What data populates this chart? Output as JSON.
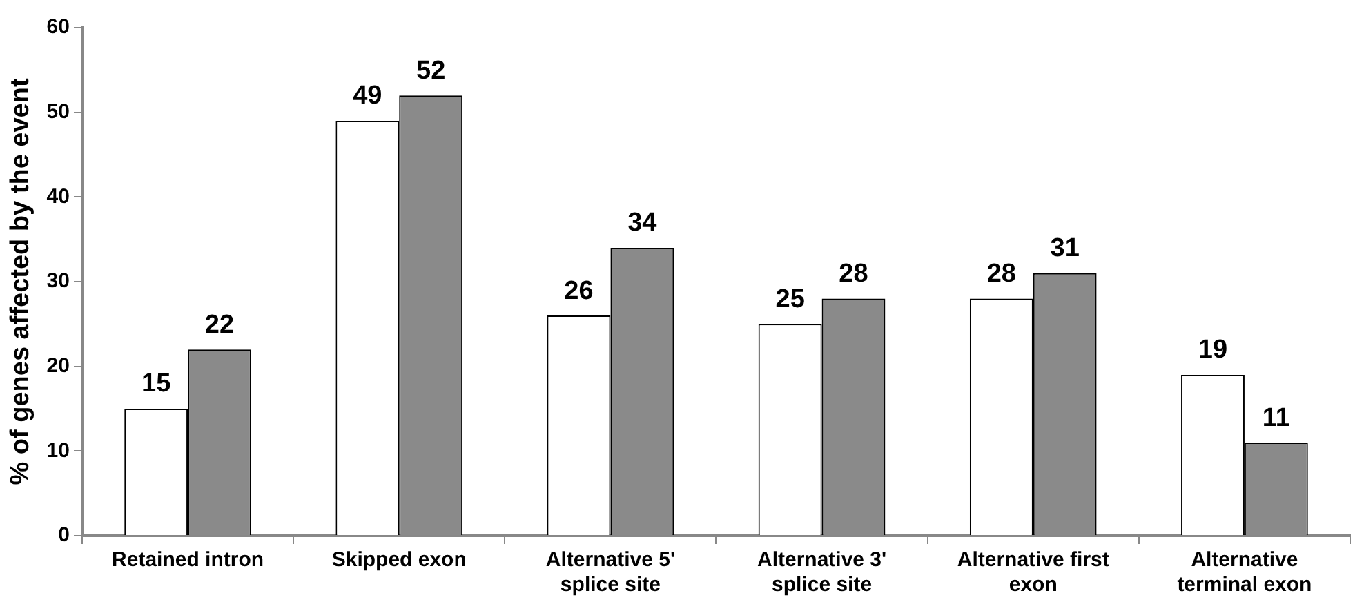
{
  "chart_data": {
    "type": "bar",
    "ylabel": "% of genes affected by the event",
    "categories": [
      "Retained intron",
      "Skipped exon",
      "Alternative 5' splice site",
      "Alternative 3' splice site",
      "Alternative first exon",
      "Alternative terminal exon"
    ],
    "series": [
      {
        "color": "#ffffff",
        "values": [
          15,
          49,
          26,
          25,
          28,
          19
        ]
      },
      {
        "color": "#8a8a8a",
        "values": [
          22,
          52,
          34,
          28,
          31,
          11
        ]
      }
    ],
    "ylim": [
      0,
      60
    ],
    "yticks": [
      0,
      10,
      20,
      30,
      40,
      50,
      60
    ],
    "data_labels": true,
    "grid": false,
    "legend": false
  }
}
